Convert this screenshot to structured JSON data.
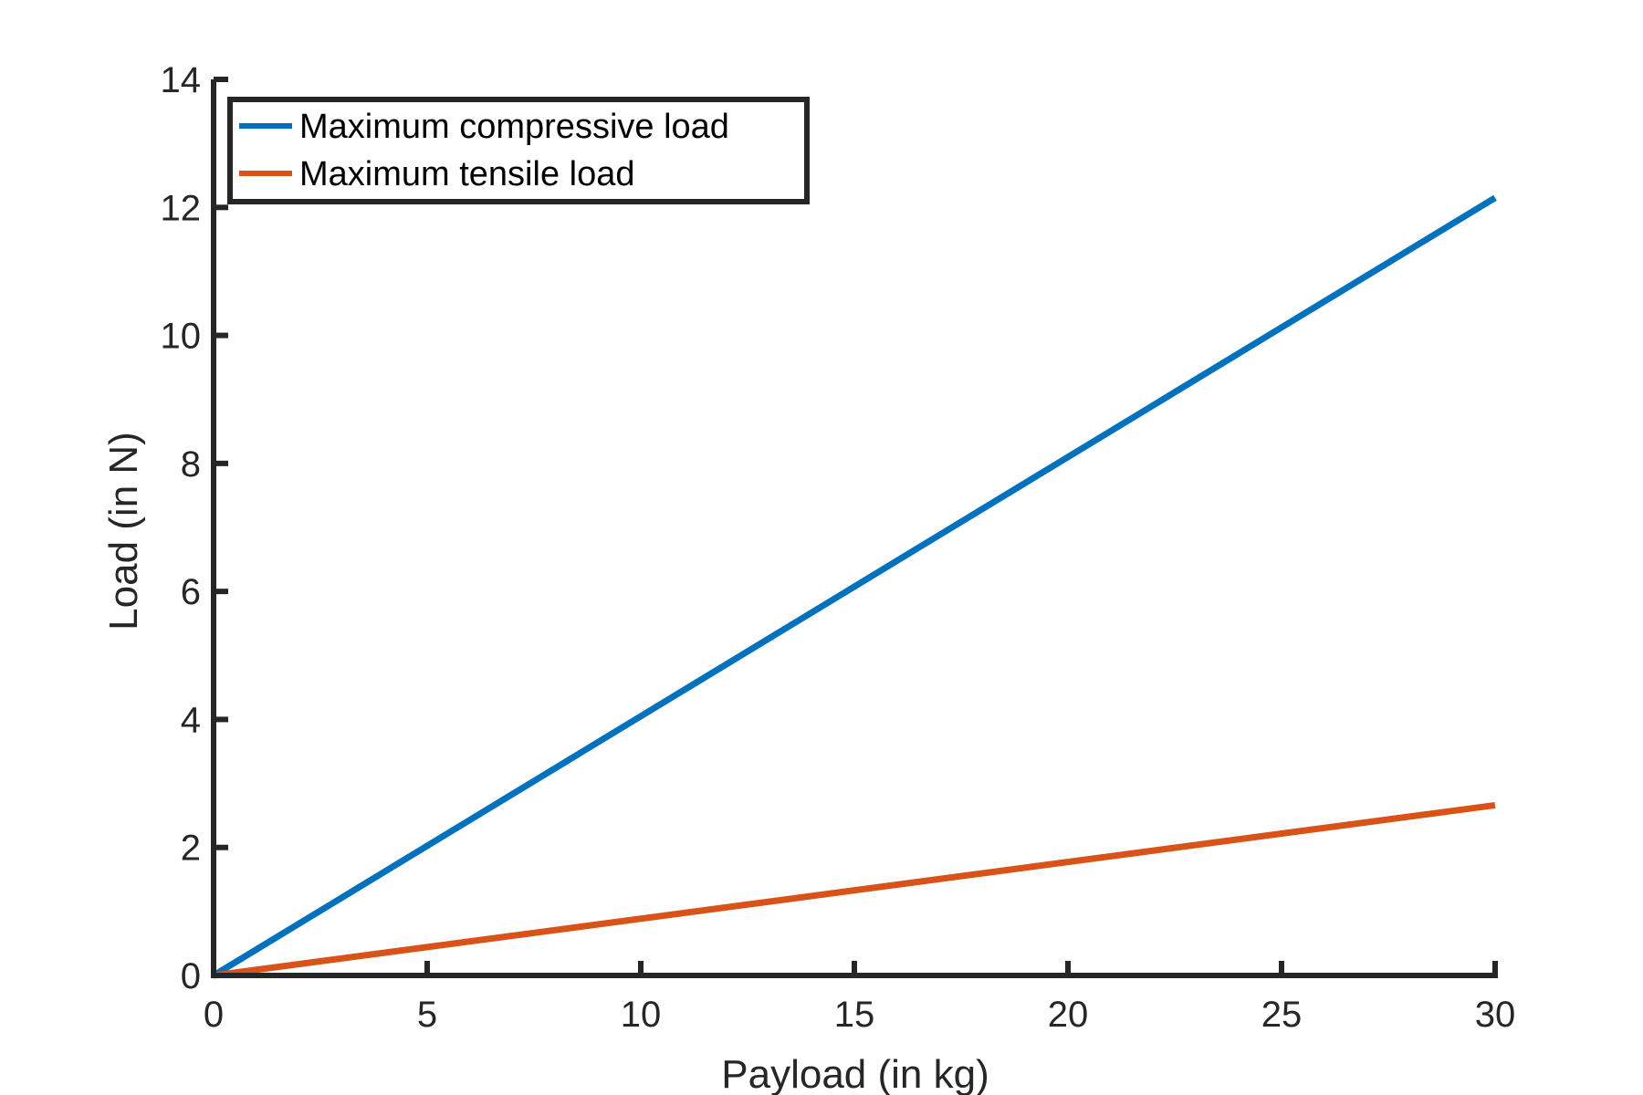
{
  "chart_data": {
    "type": "line",
    "title": "",
    "xlabel": "Payload (in kg)",
    "ylabel": "Load (in N)",
    "xlim": [
      0,
      30
    ],
    "ylim": [
      0,
      14
    ],
    "xticks": [
      0,
      5,
      10,
      15,
      20,
      25,
      30
    ],
    "yticks": [
      0,
      2,
      4,
      6,
      8,
      10,
      12,
      14
    ],
    "grid": false,
    "legend_position": "top-left",
    "series": [
      {
        "name": "Maximum compressive load",
        "color": "#0072BD",
        "x": [
          0,
          30
        ],
        "y": [
          0,
          12.15
        ]
      },
      {
        "name": "Maximum tensile load",
        "color": "#D95319",
        "x": [
          0,
          30
        ],
        "y": [
          0,
          2.66
        ]
      }
    ]
  }
}
